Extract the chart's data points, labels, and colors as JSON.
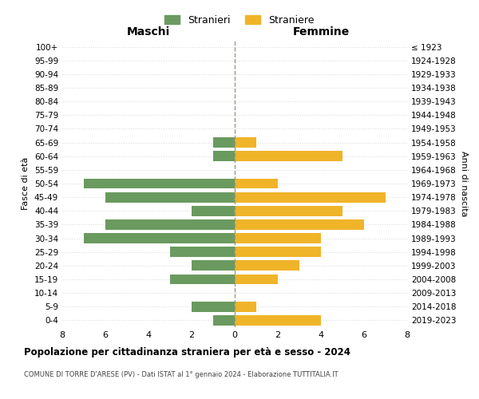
{
  "age_groups": [
    "100+",
    "95-99",
    "90-94",
    "85-89",
    "80-84",
    "75-79",
    "70-74",
    "65-69",
    "60-64",
    "55-59",
    "50-54",
    "45-49",
    "40-44",
    "35-39",
    "30-34",
    "25-29",
    "20-24",
    "15-19",
    "10-14",
    "5-9",
    "0-4"
  ],
  "birth_years": [
    "≤ 1923",
    "1924-1928",
    "1929-1933",
    "1934-1938",
    "1939-1943",
    "1944-1948",
    "1949-1953",
    "1954-1958",
    "1959-1963",
    "1964-1968",
    "1969-1973",
    "1974-1978",
    "1979-1983",
    "1984-1988",
    "1989-1993",
    "1994-1998",
    "1999-2003",
    "2004-2008",
    "2009-2013",
    "2014-2018",
    "2019-2023"
  ],
  "maschi": [
    0,
    0,
    0,
    0,
    0,
    0,
    0,
    1,
    1,
    0,
    7,
    6,
    2,
    6,
    7,
    3,
    2,
    3,
    0,
    2,
    1
  ],
  "femmine": [
    0,
    0,
    0,
    0,
    0,
    0,
    0,
    1,
    5,
    0,
    2,
    7,
    5,
    6,
    4,
    4,
    3,
    2,
    0,
    1,
    4
  ],
  "maschi_color": "#6a9a5f",
  "femmine_color": "#f0b429",
  "title": "Popolazione per cittadinanza straniera per età e sesso - 2024",
  "subtitle": "COMUNE DI TORRE D'ARESE (PV) - Dati ISTAT al 1° gennaio 2024 - Elaborazione TUTTITALIA.IT",
  "xlabel_maschi": "Maschi",
  "xlabel_femmine": "Femmine",
  "ylabel_left": "Fasce di età",
  "ylabel_right": "Anni di nascita",
  "legend_maschi": "Stranieri",
  "legend_femmine": "Straniere",
  "xlim": 8,
  "background_color": "#ffffff",
  "grid_color": "#dddddd"
}
